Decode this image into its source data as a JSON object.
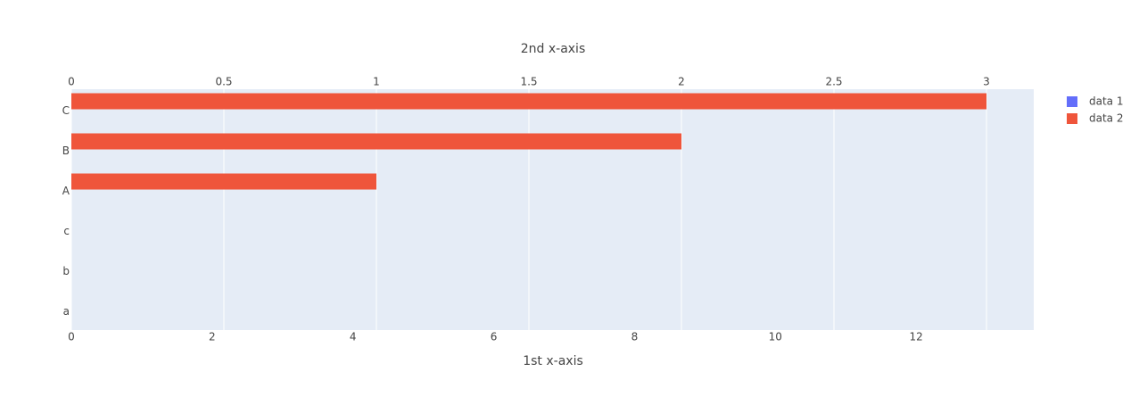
{
  "chart_data": {
    "type": "bar",
    "orientation": "h",
    "x_axis_title": "1st x-axis",
    "x2_axis_title": "2nd x-axis",
    "xlim": [
      0,
      13.67
    ],
    "xticks": [
      0,
      2,
      4,
      6,
      8,
      10,
      12
    ],
    "x2lim": [
      0,
      3.155
    ],
    "x2ticks": [
      0,
      0.5,
      1,
      1.5,
      2,
      2.5,
      3
    ],
    "grid": true,
    "categories": [
      "a",
      "b",
      "c",
      "A",
      "B",
      "C"
    ],
    "series": [
      {
        "name": "data 1",
        "color": "#636efa",
        "axis": "x",
        "values": [
          0,
          0,
          0,
          null,
          null,
          null
        ]
      },
      {
        "name": "data 2",
        "color": "#ef553b",
        "axis": "x2",
        "values": [
          null,
          null,
          null,
          1,
          2,
          3
        ]
      }
    ],
    "legend": "top-right"
  }
}
